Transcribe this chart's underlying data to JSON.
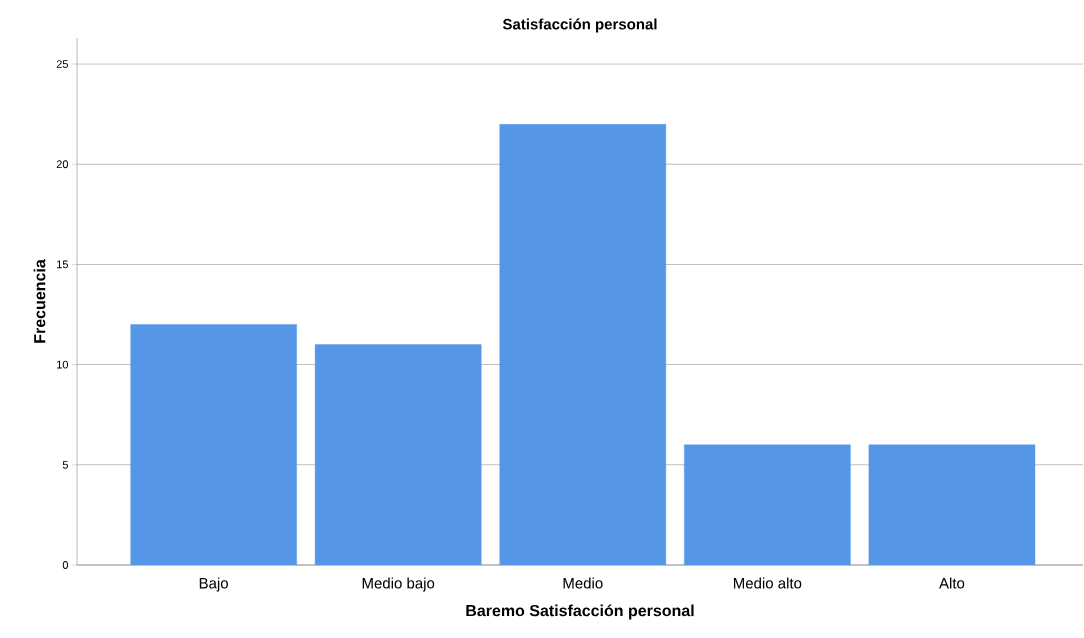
{
  "chart_data": {
    "type": "bar",
    "title": "Satisfacción personal",
    "xlabel": "Baremo Satisfacción personal",
    "ylabel": "Frecuencia",
    "categories": [
      "Bajo",
      "Medio bajo",
      "Medio",
      "Medio alto",
      "Alto"
    ],
    "values": [
      12,
      11,
      22,
      6,
      6
    ],
    "color": "#5596e6",
    "ylim": [
      0,
      26.3
    ],
    "yticks": [
      0,
      5,
      10,
      15,
      20,
      25
    ],
    "grid": "y"
  }
}
